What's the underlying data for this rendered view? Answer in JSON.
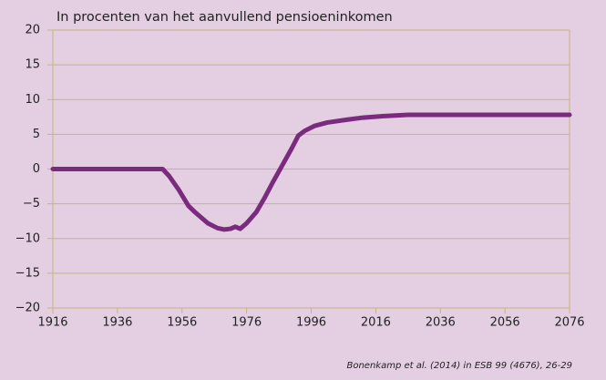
{
  "chart_data": {
    "type": "line",
    "title": "In procenten van het aanvullend pensioeninkomen",
    "source": "Bonenkamp et al. (2014) in ESB 99 (4676), 26-29",
    "x": [
      1916,
      1930,
      1950,
      1952,
      1955,
      1958,
      1960,
      1964,
      1967,
      1969,
      1971,
      1972.5,
      1974,
      1976,
      1979,
      1981.5,
      1984,
      1987,
      1990,
      1992,
      1994,
      1997,
      2001,
      2007,
      2012,
      2018,
      2026,
      2040,
      2060,
      2076
    ],
    "series": [
      {
        "name": "Pensioeninkomen",
        "color": "#7b2b7e",
        "values": [
          0,
          0,
          0,
          -1,
          -3,
          -5.3,
          -6.2,
          -7.8,
          -8.5,
          -8.7,
          -8.6,
          -8.3,
          -8.6,
          -7.8,
          -6.2,
          -4.2,
          -2.0,
          0.5,
          3.0,
          4.8,
          5.5,
          6.2,
          6.7,
          7.1,
          7.4,
          7.6,
          7.8,
          7.8,
          7.8,
          7.8
        ]
      }
    ],
    "xlim": [
      1916,
      2076
    ],
    "xticks": [
      1916,
      1936,
      1956,
      1976,
      1996,
      2016,
      2036,
      2056,
      2076
    ],
    "ylim": [
      -20,
      20
    ],
    "yticks": [
      {
        "value": -20,
        "label": "−20"
      },
      {
        "value": -15,
        "label": "−15"
      },
      {
        "value": -10,
        "label": "−10"
      },
      {
        "value": -5,
        "label": "−5"
      },
      0,
      5,
      10,
      15,
      20
    ],
    "grid": true
  }
}
